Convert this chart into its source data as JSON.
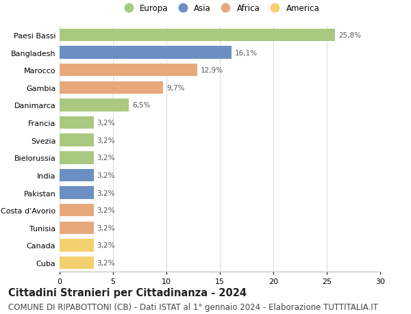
{
  "categories": [
    "Paesi Bassi",
    "Bangladesh",
    "Marocco",
    "Gambia",
    "Danimarca",
    "Francia",
    "Svezia",
    "Bielorussia",
    "India",
    "Pakistan",
    "Costa d'Avorio",
    "Tunisia",
    "Canada",
    "Cuba"
  ],
  "values": [
    25.8,
    16.1,
    12.9,
    9.7,
    6.5,
    3.2,
    3.2,
    3.2,
    3.2,
    3.2,
    3.2,
    3.2,
    3.2,
    3.2
  ],
  "labels": [
    "25,8%",
    "16,1%",
    "12,9%",
    "9,7%",
    "6,5%",
    "3,2%",
    "3,2%",
    "3,2%",
    "3,2%",
    "3,2%",
    "3,2%",
    "3,2%",
    "3,2%",
    "3,2%"
  ],
  "continents": [
    "Europa",
    "Asia",
    "Africa",
    "Africa",
    "Europa",
    "Europa",
    "Europa",
    "Europa",
    "Asia",
    "Asia",
    "Africa",
    "Africa",
    "America",
    "America"
  ],
  "colors": {
    "Europa": "#a8c97f",
    "Asia": "#6b8fc2",
    "Africa": "#e8a87c",
    "America": "#f5d06e"
  },
  "legend_order": [
    "Europa",
    "Asia",
    "Africa",
    "America"
  ],
  "xlim": [
    0,
    30
  ],
  "xticks": [
    0,
    5,
    10,
    15,
    20,
    25,
    30
  ],
  "title": "Cittadini Stranieri per Cittadinanza - 2024",
  "subtitle": "COMUNE DI RIPABOTTONI (CB) - Dati ISTAT al 1° gennaio 2024 - Elaborazione TUTTITALIA.IT",
  "title_fontsize": 10.5,
  "subtitle_fontsize": 8.5,
  "background_color": "#ffffff",
  "grid_color": "#dddddd",
  "bar_height": 0.72
}
